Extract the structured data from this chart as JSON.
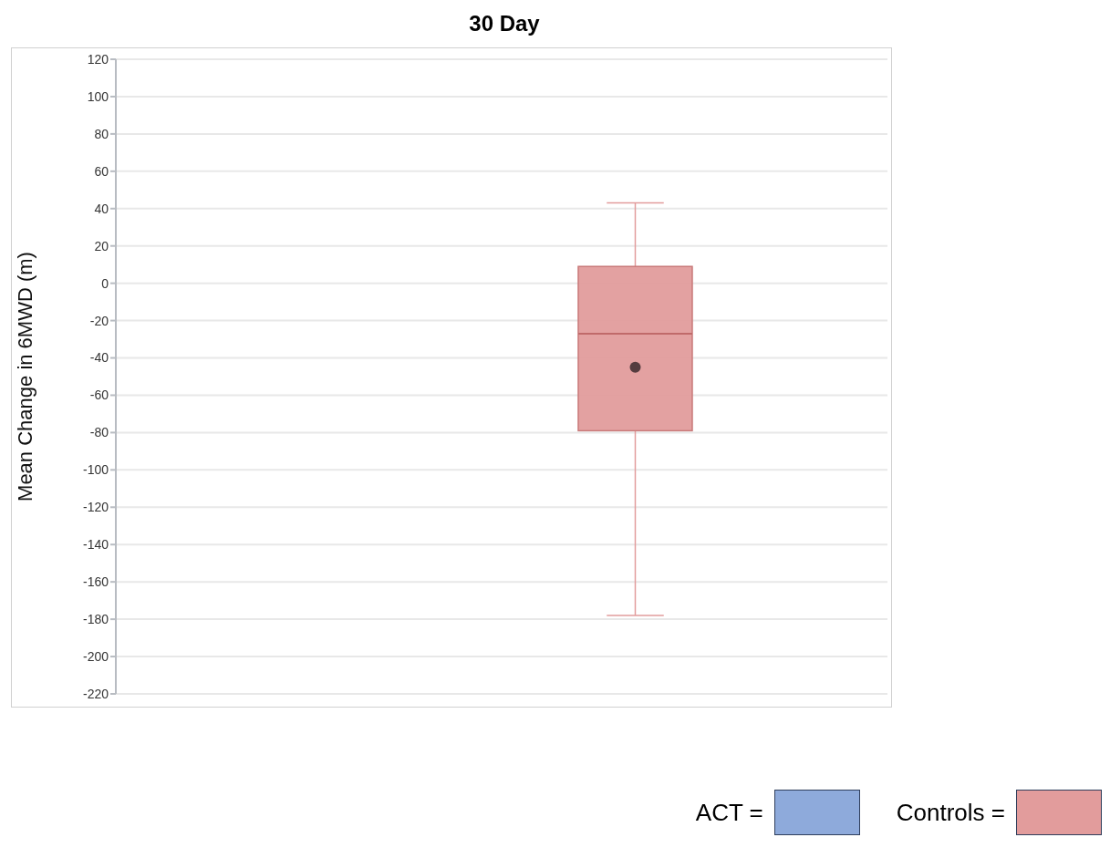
{
  "chart_data": {
    "type": "box",
    "title": "30 Day",
    "ylabel": "Mean Change in 6MWD (m)",
    "categories": [
      null
    ],
    "series": [
      {
        "name": "ACT =",
        "color": "#8eaadb",
        "boxes": [
          null
        ]
      },
      {
        "name": "Controls =",
        "color": "#e29c9c",
        "boxes": [
          {
            "low": -178,
            "q1": -79,
            "median": -27,
            "q3": 9,
            "high": 43,
            "mean": -45
          }
        ]
      }
    ],
    "ylim": [
      -220,
      120
    ],
    "yticks": [
      -220,
      -200,
      -180,
      -160,
      -140,
      -120,
      -100,
      -80,
      -60,
      -40,
      -20,
      0,
      20,
      40,
      60,
      80,
      100,
      120
    ],
    "grid": "y",
    "legend": "bottom right"
  }
}
